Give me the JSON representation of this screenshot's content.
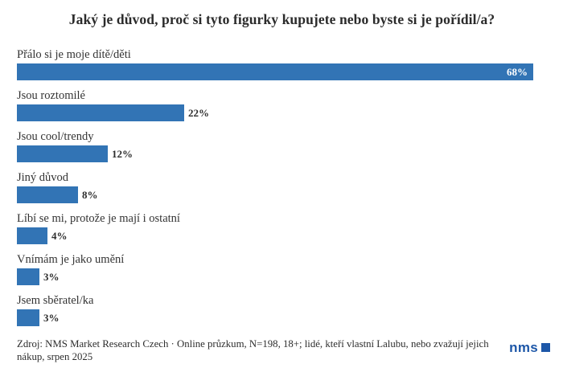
{
  "chart_data": {
    "type": "bar",
    "orientation": "horizontal",
    "title": "Jaký je důvod, proč si tyto figurky kupujete nebo byste si je pořídil/a?",
    "categories": [
      "Přálo si je moje dítě/děti",
      "Jsou roztomilé",
      "Jsou cool/trendy",
      "Jiný důvod",
      "Líbí se mi, protože je mají i ostatní",
      "Vnímám je jako umění",
      "Jsem sběratel/ka"
    ],
    "values": [
      68,
      22,
      12,
      8,
      4,
      3,
      3
    ],
    "value_labels": [
      "68%",
      "22%",
      "12%",
      "8%",
      "4%",
      "3%",
      "3%"
    ],
    "value_label_inside": [
      true,
      false,
      false,
      false,
      false,
      false,
      false
    ],
    "unit": "%",
    "xlim": [
      0,
      70
    ],
    "grid": false,
    "legend": false,
    "bar_color": "#3274b5"
  },
  "footer": {
    "source_text": "Zdroj: NMS Market Research Czech · Online průzkum, N=198, 18+; lidé, kteří vlastní Lalubu, nebo zvažují jejich nákup, srpen 2025",
    "logo_text": "nms"
  },
  "colors": {
    "bar": "#3274b5",
    "title_text": "#2b2b2b",
    "label_text": "#333333",
    "value_inside_text": "#ffffff",
    "value_outside_text": "#2d2d2d",
    "logo_blue": "#1d57a8"
  }
}
